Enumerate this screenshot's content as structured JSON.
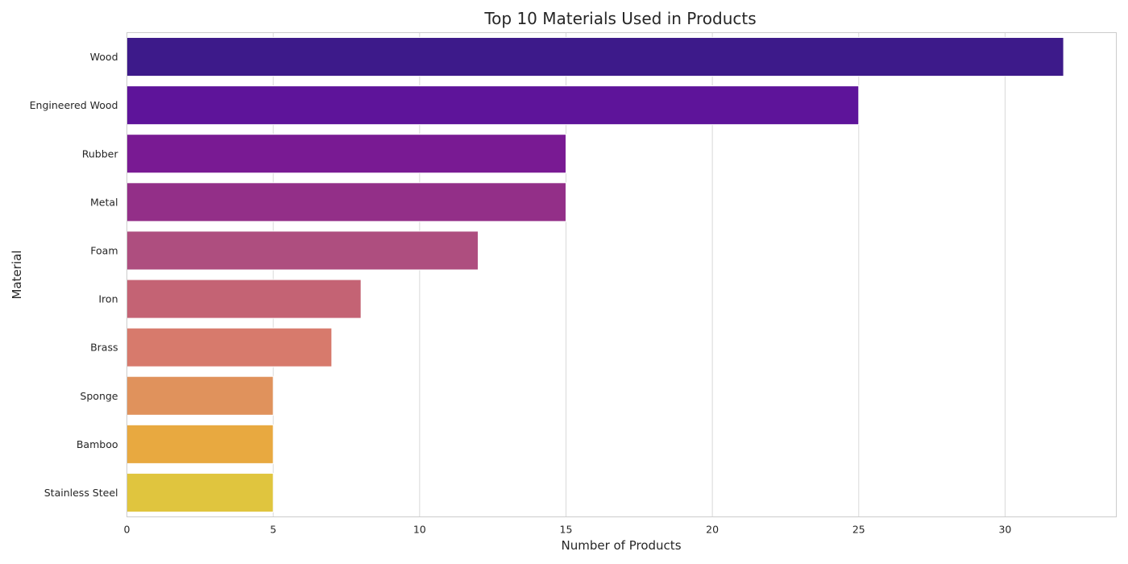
{
  "chart_data": {
    "type": "bar",
    "orientation": "horizontal",
    "title": "Top 10 Materials Used in Products",
    "xlabel": "Number of Products",
    "ylabel": "Material",
    "categories": [
      "Wood",
      "Engineered Wood",
      "Rubber",
      "Metal",
      "Foam",
      "Iron",
      "Brass",
      "Sponge",
      "Bamboo",
      "Stainless Steel"
    ],
    "values": [
      32,
      25,
      15,
      15,
      12,
      8,
      7,
      5,
      5,
      5
    ],
    "colors": [
      "#3d1a8a",
      "#5e149a",
      "#791a93",
      "#932f88",
      "#ae4e7f",
      "#c46374",
      "#d77a6c",
      "#e0925c",
      "#e8a940",
      "#e0c53e"
    ],
    "xlim": [
      0,
      33.8
    ],
    "xticks": [
      0,
      5,
      10,
      15,
      20,
      25,
      30
    ],
    "grid": true,
    "legend": "none"
  }
}
